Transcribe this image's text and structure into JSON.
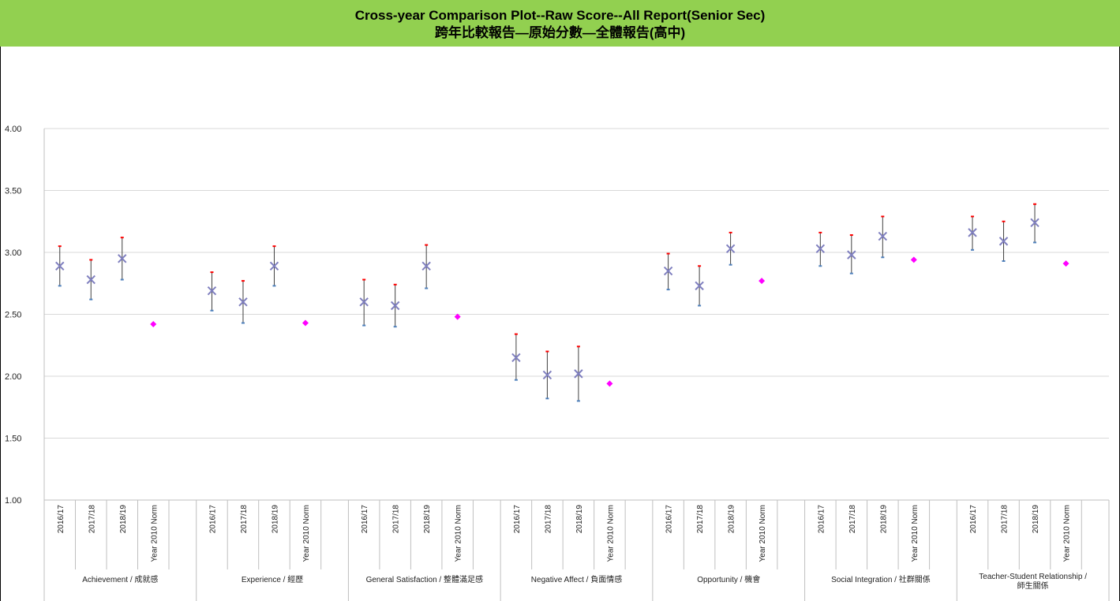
{
  "header": {
    "title": "Cross-year Comparison Plot--Raw Score--All Report(Senior Sec)",
    "subtitle": "跨年比較報告—原始分數—全體報告(高中)"
  },
  "colors": {
    "header_bg": "#92d050",
    "marker": "#7f7fbf",
    "whisker_high": "#ff0000",
    "whisker_low": "#4f81bd",
    "norm": "#ff00ff",
    "grid": "#d9d9d9"
  },
  "chart_data": {
    "type": "scatter",
    "title": "Cross-year Comparison Plot--Raw Score--All Report(Senior Sec)",
    "ylim": [
      1.0,
      4.0
    ],
    "yticks": [
      "1.00",
      "1.50",
      "2.00",
      "2.50",
      "3.00",
      "3.50",
      "4.00"
    ],
    "grid": true,
    "sub_categories": [
      "2016/17",
      "2017/18",
      "2018/19",
      "Year 2010 Norm"
    ],
    "groups": [
      {
        "label": "Achievement / 成就感",
        "years": [
          {
            "year": "2016/17",
            "mean": 2.89,
            "low": 2.73,
            "high": 3.05
          },
          {
            "year": "2017/18",
            "mean": 2.78,
            "low": 2.62,
            "high": 2.94
          },
          {
            "year": "2018/19",
            "mean": 2.95,
            "low": 2.78,
            "high": 3.12
          }
        ],
        "norm": 2.42
      },
      {
        "label": "Experience / 經歷",
        "years": [
          {
            "year": "2016/17",
            "mean": 2.69,
            "low": 2.53,
            "high": 2.84
          },
          {
            "year": "2017/18",
            "mean": 2.6,
            "low": 2.43,
            "high": 2.77
          },
          {
            "year": "2018/19",
            "mean": 2.89,
            "low": 2.73,
            "high": 3.05
          }
        ],
        "norm": 2.43
      },
      {
        "label": "General Satisfaction / 整體滿足感",
        "years": [
          {
            "year": "2016/17",
            "mean": 2.6,
            "low": 2.41,
            "high": 2.78
          },
          {
            "year": "2017/18",
            "mean": 2.57,
            "low": 2.4,
            "high": 2.74
          },
          {
            "year": "2018/19",
            "mean": 2.89,
            "low": 2.71,
            "high": 3.06
          }
        ],
        "norm": 2.48
      },
      {
        "label": "Negative Affect / 負面情感",
        "years": [
          {
            "year": "2016/17",
            "mean": 2.15,
            "low": 1.97,
            "high": 2.34
          },
          {
            "year": "2017/18",
            "mean": 2.01,
            "low": 1.82,
            "high": 2.2
          },
          {
            "year": "2018/19",
            "mean": 2.02,
            "low": 1.8,
            "high": 2.24
          }
        ],
        "norm": 1.94
      },
      {
        "label": "Opportunity / 機會",
        "years": [
          {
            "year": "2016/17",
            "mean": 2.85,
            "low": 2.7,
            "high": 2.99
          },
          {
            "year": "2017/18",
            "mean": 2.73,
            "low": 2.57,
            "high": 2.89
          },
          {
            "year": "2018/19",
            "mean": 3.03,
            "low": 2.9,
            "high": 3.16
          }
        ],
        "norm": 2.77
      },
      {
        "label": "Social Integration / 社群關係",
        "years": [
          {
            "year": "2016/17",
            "mean": 3.03,
            "low": 2.89,
            "high": 3.16
          },
          {
            "year": "2017/18",
            "mean": 2.98,
            "low": 2.83,
            "high": 3.14
          },
          {
            "year": "2018/19",
            "mean": 3.13,
            "low": 2.96,
            "high": 3.29
          }
        ],
        "norm": 2.94
      },
      {
        "label": "Teacher-Student Relationship / 師生關係",
        "years": [
          {
            "year": "2016/17",
            "mean": 3.16,
            "low": 3.02,
            "high": 3.29
          },
          {
            "year": "2017/18",
            "mean": 3.09,
            "low": 2.93,
            "high": 3.25
          },
          {
            "year": "2018/19",
            "mean": 3.24,
            "low": 3.08,
            "high": 3.39
          }
        ],
        "norm": 2.91
      }
    ]
  }
}
